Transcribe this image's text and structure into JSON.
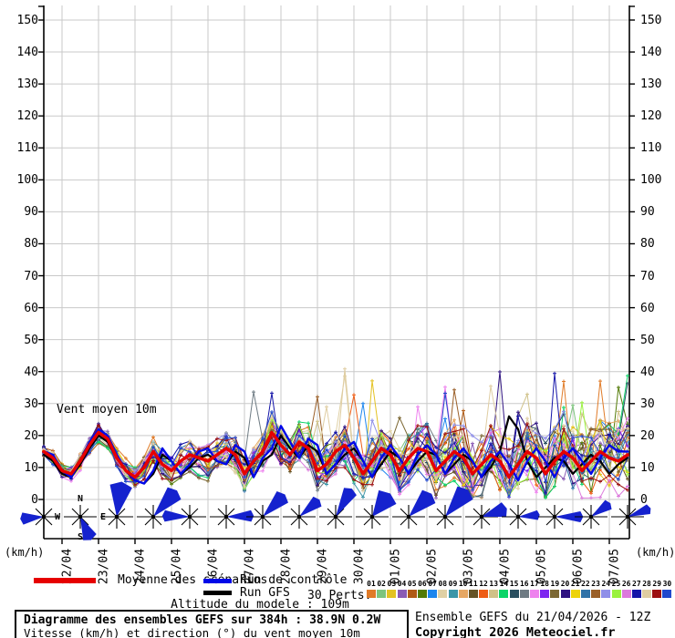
{
  "chart_data": {
    "type": "line",
    "title": "Vent moyen 10m",
    "ylabel": "(km/h)",
    "ylim": [
      0,
      155
    ],
    "y_ticks": [
      0,
      10,
      20,
      30,
      40,
      50,
      60,
      70,
      80,
      90,
      100,
      110,
      120,
      130,
      140,
      150
    ],
    "x_dates": [
      "22/04",
      "23/04",
      "24/04",
      "25/04",
      "26/04",
      "27/04",
      "28/04",
      "29/04",
      "30/04",
      "01/05",
      "02/05",
      "03/05",
      "04/05",
      "05/05",
      "06/05",
      "07/05"
    ],
    "hours_per_step": 6,
    "grid": true,
    "series": [
      {
        "name": "Moyenne des scénarios",
        "color": "#E60000",
        "width": 3.5,
        "values": [
          15,
          13,
          9,
          8,
          12,
          17,
          21,
          19,
          13,
          9,
          7,
          10,
          15,
          11,
          9,
          12,
          14,
          13,
          12,
          14,
          16,
          14,
          8,
          12,
          15,
          21,
          17,
          14,
          18,
          16,
          9,
          11,
          15,
          17,
          13,
          8,
          12,
          16,
          14,
          9,
          13,
          16,
          15,
          9,
          12,
          15,
          13,
          8,
          11,
          14,
          12,
          7,
          11,
          15,
          13,
          8,
          12,
          15,
          13,
          9,
          12,
          15,
          13,
          12,
          14
        ]
      },
      {
        "name": "Run de contrôle",
        "color": "#0008E8",
        "width": 2.4,
        "values": [
          15,
          14,
          9,
          7,
          12,
          18,
          22,
          20,
          14,
          9,
          6,
          5,
          9,
          16,
          12,
          8,
          11,
          15,
          16,
          12,
          11,
          17,
          15,
          7,
          13,
          16,
          23,
          18,
          13,
          19,
          17,
          8,
          11,
          16,
          18,
          12,
          7,
          13,
          17,
          13,
          8,
          14,
          17,
          14,
          8,
          13,
          16,
          12,
          7,
          12,
          15,
          11,
          6,
          12,
          16,
          12,
          7,
          13,
          16,
          12,
          8,
          13,
          17,
          15,
          15
        ]
      },
      {
        "name": "Run GFS",
        "color": "#000000",
        "width": 2.2,
        "values": [
          14,
          12,
          8,
          7,
          11,
          16,
          20,
          18,
          13,
          9,
          6,
          5,
          8,
          14,
          12,
          8,
          10,
          13,
          14,
          12,
          11,
          15,
          13,
          7,
          12,
          14,
          20,
          16,
          13,
          17,
          15,
          8,
          11,
          14,
          16,
          12,
          7,
          11,
          15,
          13,
          8,
          12,
          15,
          14,
          8,
          11,
          14,
          12,
          7,
          10,
          15,
          26,
          22,
          12,
          7,
          10,
          13,
          12,
          8,
          11,
          14,
          12,
          8,
          11,
          13
        ]
      }
    ],
    "members": {
      "count": 30,
      "labels": [
        "01",
        "02",
        "03",
        "04",
        "05",
        "06",
        "07",
        "08",
        "09",
        "10",
        "11",
        "12",
        "13",
        "14",
        "15",
        "16",
        "17",
        "18",
        "19",
        "20",
        "21",
        "22",
        "23",
        "24",
        "25",
        "26",
        "27",
        "28",
        "29",
        "30"
      ],
      "colors": [
        "#E07B28",
        "#7DC47D",
        "#E3C223",
        "#8A5BB5",
        "#B05A14",
        "#527A06",
        "#1C86EE",
        "#DFD0A4",
        "#3C96A8",
        "#E6A763",
        "#655325",
        "#EE5C14",
        "#CFC187",
        "#0BD467",
        "#2A4F60",
        "#6E7B83",
        "#EE82EE",
        "#7D26F0",
        "#7C6834",
        "#2E1280",
        "#EDD30A",
        "#3173A8",
        "#9A5F28",
        "#8F8FE8",
        "#9AF23F",
        "#DC79DC",
        "#1414A8",
        "#DFCDA2",
        "#9C1010",
        "#2148CC"
      ]
    },
    "wind_roses": {
      "color": "#1522CE",
      "compass": {
        "n": "N",
        "s": "S",
        "e": "E",
        "w": "W"
      },
      "items": [
        {
          "dir": 265,
          "len": 24,
          "spread": 16
        },
        {
          "dir": 155,
          "len": 26,
          "spread": 18
        },
        {
          "dir": 8,
          "len": 36,
          "spread": 20
        },
        {
          "dir": 42,
          "len": 36,
          "spread": 16
        },
        {
          "dir": 272,
          "len": 28,
          "spread": 13
        },
        {
          "dir": 88,
          "len": 28,
          "spread": 13
        },
        {
          "dir": 45,
          "len": 32,
          "spread": 16
        },
        {
          "dir": 50,
          "len": 27,
          "spread": 15
        },
        {
          "dir": 30,
          "len": 33,
          "spread": 14
        },
        {
          "dir": 38,
          "len": 30,
          "spread": 24
        },
        {
          "dir": 45,
          "len": 33,
          "spread": 18
        },
        {
          "dir": 40,
          "len": 36,
          "spread": 18
        },
        {
          "dir": 72,
          "len": 27,
          "spread": 18
        },
        {
          "dir": 85,
          "len": 22,
          "spread": 14
        },
        {
          "dir": 90,
          "len": 29,
          "spread": 12
        },
        {
          "dir": 55,
          "len": 24,
          "spread": 15
        },
        {
          "dir": 70,
          "len": 25,
          "spread": 13
        }
      ]
    }
  },
  "labels": {
    "annotation": "Vent moyen 10m",
    "unit_left": "(km/h)",
    "unit_right": "(km/h)",
    "legend_mean": "Moyenne des scénarios",
    "legend_control": "Run de contrôle",
    "legend_gfs": "Run GFS",
    "legend_perts": "30 Perts.",
    "altitude": "Altitude du modele : 109m"
  },
  "footer": {
    "box_title": "Diagramme des ensembles GEFS sur 384h : 38.9N 0.2W",
    "box_subtitle": "Vitesse (km/h) et direction (°) du vent moyen 10m",
    "run_info": "Ensemble GEFS du 21/04/2026 - 12Z",
    "copyright": "Copyright 2026 Meteociel.fr"
  }
}
